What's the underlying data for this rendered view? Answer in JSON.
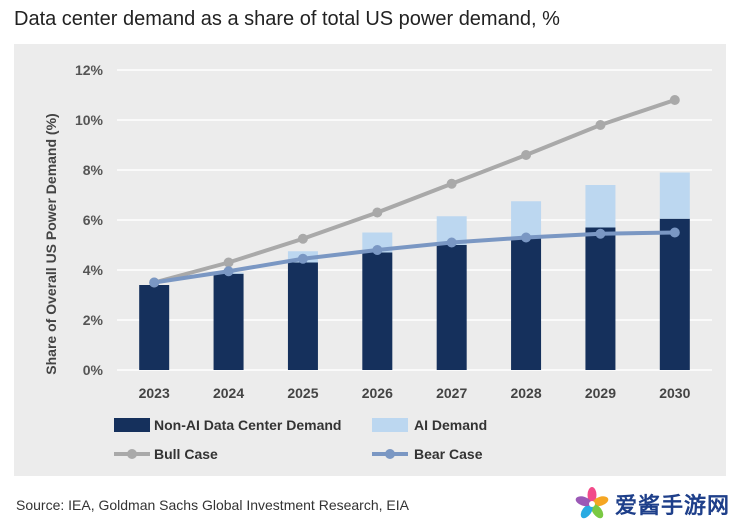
{
  "title": "Data center demand as a share of total US power demand, %",
  "source": "Source: IEA, Goldman Sachs Global Investment Research, EIA",
  "watermark": "爱酱手游网",
  "colors": {
    "non_ai": "#15305c",
    "ai": "#bcd7f0",
    "bull": "#a9a9a9",
    "bear": "#7a97c3",
    "panel": "#ececec",
    "grid": "#ffffff"
  },
  "chart_data": {
    "type": "bar",
    "stacked": true,
    "categories": [
      "2023",
      "2024",
      "2025",
      "2026",
      "2027",
      "2028",
      "2029",
      "2030"
    ],
    "ylabel": "Share of Overall US Power Demand (%)",
    "ylim": [
      0,
      12
    ],
    "yticks": [
      0,
      2,
      4,
      6,
      8,
      10,
      12
    ],
    "ytick_labels": [
      "0%",
      "2%",
      "4%",
      "6%",
      "8%",
      "10%",
      "12%"
    ],
    "grid": true,
    "legend_position": "bottom",
    "series": [
      {
        "name": "Non-AI Data Center Demand",
        "kind": "bar",
        "values": [
          3.4,
          3.85,
          4.3,
          4.7,
          5.0,
          5.3,
          5.7,
          6.05
        ]
      },
      {
        "name": "AI Demand",
        "kind": "bar",
        "values": [
          0.0,
          0.05,
          0.45,
          0.8,
          1.15,
          1.45,
          1.7,
          1.85
        ]
      },
      {
        "name": "Bull Case",
        "kind": "line",
        "values": [
          3.5,
          4.3,
          5.25,
          6.3,
          7.45,
          8.6,
          9.8,
          10.8
        ]
      },
      {
        "name": "Bear Case",
        "kind": "line",
        "values": [
          3.5,
          3.95,
          4.45,
          4.8,
          5.1,
          5.3,
          5.45,
          5.5
        ]
      }
    ]
  }
}
